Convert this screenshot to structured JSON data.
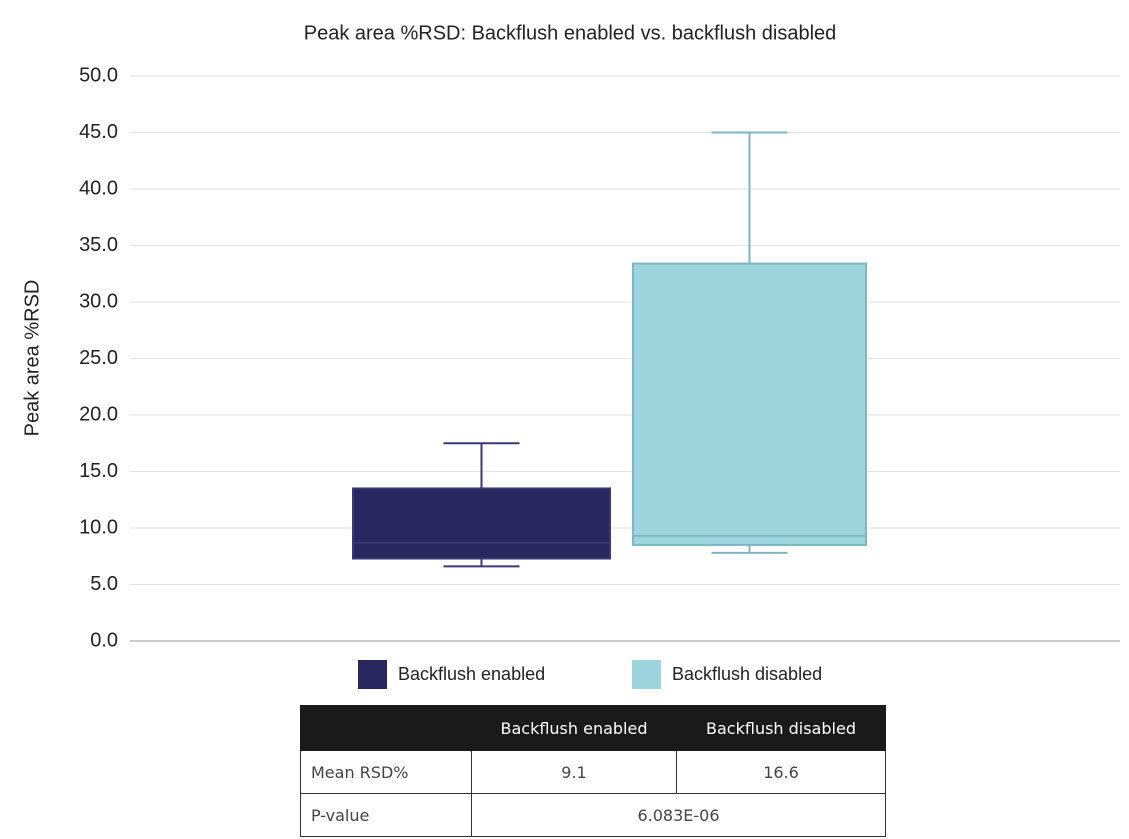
{
  "chart_data": {
    "type": "box",
    "title": "Peak area %RSD: Backflush enabled vs. backflush disabled",
    "y_label": "Peak area %RSD",
    "ylim": [
      0,
      50
    ],
    "yticks": [
      {
        "value": 0,
        "label": "0.0"
      },
      {
        "value": 5,
        "label": "5.0"
      },
      {
        "value": 10,
        "label": "10.0"
      },
      {
        "value": 15,
        "label": "15.0"
      },
      {
        "value": 20,
        "label": "20.0"
      },
      {
        "value": 25,
        "label": "25.0"
      },
      {
        "value": 30,
        "label": "30.0"
      },
      {
        "value": 35,
        "label": "35.0"
      },
      {
        "value": 40,
        "label": "40.0"
      },
      {
        "value": 45,
        "label": "45.0"
      },
      {
        "value": 50,
        "label": "50.0"
      }
    ],
    "grid": true,
    "series": [
      {
        "name": "Backflush enabled",
        "color": "#29275f",
        "edge": "#3a3872",
        "low": 6.6,
        "q1": 7.3,
        "median": 8.7,
        "q3": 13.5,
        "high": 17.5
      },
      {
        "name": "Backflush disabled",
        "color": "#9dd5de",
        "edge": "#7fb6c2",
        "low": 7.8,
        "q1": 8.5,
        "median": 9.3,
        "q3": 33.4,
        "high": 45.0
      }
    ]
  },
  "table": {
    "header": [
      "Backflush enabled",
      "Backflush disabled"
    ],
    "rows": [
      [
        "Mean RSD%",
        "9.1",
        "16.6"
      ],
      [
        "P-value",
        "6.083E-06"
      ]
    ]
  }
}
